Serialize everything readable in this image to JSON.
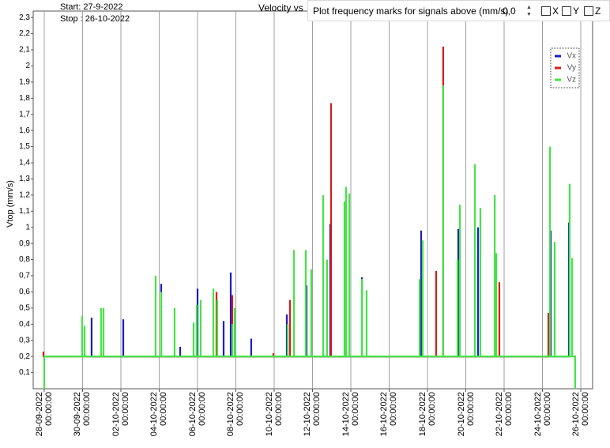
{
  "header": {
    "start": "Start: 27-9-2022",
    "stop": "Stop : 26-10-2022"
  },
  "toolbar": {
    "prompt": "Plot frequency marks for signals above (mm/s)",
    "threshold": "0,0",
    "checkboxes": [
      "X",
      "Y",
      "Z"
    ]
  },
  "chart_data": {
    "type": "line",
    "title": "Velocity vs",
    "ylabel": "Vtop (mm/s)",
    "xlim": [
      "2022-09-27 10:10:00",
      "2022-10-26 14:50:00"
    ],
    "ylim": [
      0,
      2.34
    ],
    "xticks": [
      {
        "value": "2022-09-28 00:00:00",
        "label": "28-09-2022 00:00:00"
      },
      {
        "value": "2022-09-30 00:00:00",
        "label": "30-09-2022 00:00:00"
      },
      {
        "value": "2022-10-02 00:00:00",
        "label": "02-10-2022 00:00:00"
      },
      {
        "value": "2022-10-04 00:00:00",
        "label": "04-10-2022 00:00:00"
      },
      {
        "value": "2022-10-06 00:00:00",
        "label": "06-10-2022 00:00:00"
      },
      {
        "value": "2022-10-08 00:00:00",
        "label": "08-10-2022 00:00:00"
      },
      {
        "value": "2022-10-10 00:00:00",
        "label": "10-10-2022 00:00:00"
      },
      {
        "value": "2022-10-12 00:00:00",
        "label": "12-10-2022 00:00:00"
      },
      {
        "value": "2022-10-14 00:00:00",
        "label": "14-10-2022 00:00:00"
      },
      {
        "value": "2022-10-16 00:00:00",
        "label": "16-10-2022 00:00:00"
      },
      {
        "value": "2022-10-18 00:00:00",
        "label": "18-10-2022 00:00:00"
      },
      {
        "value": "2022-10-20 00:00:00",
        "label": "20-10-2022 00:00:00"
      },
      {
        "value": "2022-10-22 00:00:00",
        "label": "22-10-2022 00:00:00"
      },
      {
        "value": "2022-10-24 00:00:00",
        "label": "24-10-2022 00:00:00"
      },
      {
        "value": "2022-10-26 00:00:00",
        "label": "26-10-2022 00:00:00"
      }
    ],
    "yticks": [
      {
        "value": 0.1,
        "label": "0,1"
      },
      {
        "value": 0.2,
        "label": "0,2"
      },
      {
        "value": 0.3,
        "label": "0,3"
      },
      {
        "value": 0.4,
        "label": "0,4"
      },
      {
        "value": 0.5,
        "label": "0,5"
      },
      {
        "value": 0.6,
        "label": "0,6"
      },
      {
        "value": 0.7,
        "label": "0,7"
      },
      {
        "value": 0.8,
        "label": "0,8"
      },
      {
        "value": 0.9,
        "label": "0,9"
      },
      1,
      {
        "value": 1.1,
        "label": "1,1"
      },
      {
        "value": 1.2,
        "label": "1,2"
      },
      {
        "value": 1.3,
        "label": "1,3"
      },
      {
        "value": 1.4,
        "label": "1,4"
      },
      {
        "value": 1.5,
        "label": "1,5"
      },
      {
        "value": 1.6,
        "label": "1,6"
      },
      {
        "value": 1.7,
        "label": "1,7"
      },
      {
        "value": 1.8,
        "label": "1,8"
      },
      {
        "value": 1.9,
        "label": "1,9"
      },
      2,
      {
        "value": 2.1,
        "label": "2,1"
      },
      {
        "value": 2.2,
        "label": "2,2"
      },
      {
        "value": 2.3,
        "label": "2,3"
      }
    ],
    "grid": "x",
    "legend": "upper right",
    "series": [
      {
        "name": "Vx",
        "color": "#1c1cc8",
        "x": [
          "2022-09-30 11:20",
          "2022-09-30 11:20",
          "2022-09-30 11:20",
          "2022-10-02 03:00",
          "2022-10-02 03:00",
          "2022-10-02 03:00",
          "2022-10-04 02:30",
          "2022-10-04 02:30",
          "2022-10-04 02:30",
          "2022-10-05 02:15",
          "2022-10-05 02:15",
          "2022-10-05 02:15",
          "2022-10-06 00:00",
          "2022-10-06 00:00",
          "2022-10-06 00:00",
          "2022-10-07 08:40",
          "2022-10-07 08:40",
          "2022-10-07 08:40",
          "2022-10-07 17:35",
          "2022-10-07 17:35",
          "2022-10-07 17:35",
          "2022-10-08 19:15",
          "2022-10-08 19:15",
          "2022-10-08 19:15",
          "2022-10-10 15:50",
          "2022-10-10 15:50",
          "2022-10-10 15:50",
          "2022-10-11 16:35",
          "2022-10-11 16:35",
          "2022-10-11 16:35",
          "2022-10-12 22:15",
          "2022-10-12 22:15",
          "2022-10-12 22:15",
          "2022-10-14 13:55",
          "2022-10-14 13:55",
          "2022-10-14 13:55",
          "2022-10-17 16:05",
          "2022-10-17 16:05",
          "2022-10-17 16:05",
          "2022-10-19 14:35",
          "2022-10-19 14:35",
          "2022-10-19 14:35",
          "2022-10-20 15:20",
          "2022-10-20 15:20",
          "2022-10-20 15:20",
          "2022-10-24 10:20",
          "2022-10-24 10:20",
          "2022-10-24 10:20",
          "2022-10-25 09:10",
          "2022-10-25 09:10",
          "2022-10-25 09:10"
        ],
        "values": [
          0.2,
          0.44,
          0.2,
          0.2,
          0.43,
          0.2,
          0.2,
          0.65,
          0.2,
          0.2,
          0.26,
          0.2,
          0.2,
          0.62,
          0.2,
          0.2,
          0.42,
          0.2,
          0.2,
          0.72,
          0.2,
          0.2,
          0.31,
          0.2,
          0.2,
          0.46,
          0.2,
          0.2,
          0.64,
          0.2,
          0.2,
          1.02,
          0.2,
          0.2,
          0.69,
          0.2,
          0.2,
          0.98,
          0.2,
          0.2,
          0.99,
          0.2,
          0.2,
          1.0,
          0.2,
          0.2,
          0.98,
          0.2,
          0.2,
          1.03,
          0.2
        ]
      },
      {
        "name": "Vy",
        "color": "#e01818",
        "x": [
          "2022-09-27 23:00",
          "2022-09-27 23:00",
          "2022-09-27 23:00",
          "2022-10-06 23:45",
          "2022-10-06 23:45",
          "2022-10-06 23:45",
          "2022-10-07 19:30",
          "2022-10-07 19:30",
          "2022-10-07 19:30",
          "2022-10-09 23:00",
          "2022-10-09 23:00",
          "2022-10-09 23:00",
          "2022-10-10 19:45",
          "2022-10-10 19:45",
          "2022-10-10 19:45",
          "2022-10-12 23:15",
          "2022-10-12 23:15",
          "2022-10-12 23:15",
          "2022-10-18 10:50",
          "2022-10-18 10:50",
          "2022-10-18 10:50",
          "2022-10-18 19:40",
          "2022-10-18 19:40",
          "2022-10-18 19:40",
          "2022-10-21 18:00",
          "2022-10-21 18:00",
          "2022-10-21 18:00",
          "2022-10-24 07:25",
          "2022-10-24 07:25",
          "2022-10-24 07:25"
        ],
        "values": [
          0.2,
          0.23,
          0.2,
          0.2,
          0.6,
          0.2,
          0.2,
          0.58,
          0.2,
          0.2,
          0.22,
          0.2,
          0.2,
          0.55,
          0.2,
          0.2,
          1.77,
          0.2,
          0.2,
          0.73,
          0.2,
          0.2,
          2.12,
          0.2,
          0.2,
          0.66,
          0.2,
          0.2,
          0.47,
          0.2
        ]
      },
      {
        "name": "Vz",
        "color": "#44e444",
        "x": [
          "2022-09-28 00:00",
          "2022-09-28 00:00",
          "2022-09-29 23:30",
          "2022-09-29 23:30",
          "2022-09-29 23:30",
          "2022-09-30 02:30",
          "2022-09-30 02:30",
          "2022-09-30 02:30",
          "2022-09-30 23:15",
          "2022-09-30 23:15",
          "2022-09-30 23:15",
          "2022-10-01 02:15",
          "2022-10-01 02:15",
          "2022-10-01 02:15",
          "2022-10-03 19:30",
          "2022-10-03 19:30",
          "2022-10-03 19:30",
          "2022-10-04 02:30",
          "2022-10-04 02:30",
          "2022-10-04 02:30",
          "2022-10-04 19:15",
          "2022-10-04 19:15",
          "2022-10-04 19:15",
          "2022-10-05 19:05",
          "2022-10-05 19:05",
          "2022-10-05 19:05",
          "2022-10-05 23:00",
          "2022-10-05 23:00",
          "2022-10-05 23:00",
          "2022-10-06 03:55",
          "2022-10-06 03:55",
          "2022-10-06 03:55",
          "2022-10-06 19:50",
          "2022-10-06 19:50",
          "2022-10-06 19:50",
          "2022-10-07 00:45",
          "2022-10-07 00:45",
          "2022-10-07 00:45",
          "2022-10-07 19:30",
          "2022-10-07 19:30",
          "2022-10-07 19:30",
          "2022-10-07 22:30",
          "2022-10-07 22:30",
          "2022-10-07 22:30",
          "2022-10-10 16:50",
          "2022-10-10 16:50",
          "2022-10-10 16:50",
          "2022-10-11 00:45",
          "2022-10-11 00:45",
          "2022-10-11 00:45",
          "2022-10-11 15:35",
          "2022-10-11 15:35",
          "2022-10-11 15:35",
          "2022-10-11 22:30",
          "2022-10-11 22:30",
          "2022-10-11 22:30",
          "2022-10-12 13:25",
          "2022-10-12 13:25",
          "2022-10-12 13:25",
          "2022-10-12 18:15",
          "2022-10-12 18:15",
          "2022-10-12 18:15",
          "2022-10-13 16:05",
          "2022-10-13 16:05",
          "2022-10-13 16:05",
          "2022-10-13 18:00",
          "2022-10-13 18:00",
          "2022-10-13 18:00",
          "2022-10-13 22:05",
          "2022-10-13 22:05",
          "2022-10-13 22:05",
          "2022-10-14 13:55",
          "2022-10-14 13:55",
          "2022-10-14 13:55",
          "2022-10-14 19:45",
          "2022-10-14 19:45",
          "2022-10-14 19:45",
          "2022-10-17 14:10",
          "2022-10-17 14:10",
          "2022-10-17 14:10",
          "2022-10-17 18:00",
          "2022-10-17 18:00",
          "2022-10-17 18:00",
          "2022-10-18 19:40",
          "2022-10-18 19:40",
          "2022-10-18 19:40",
          "2022-10-19 13:40",
          "2022-10-19 13:40",
          "2022-10-19 13:40",
          "2022-10-19 16:35",
          "2022-10-19 16:35",
          "2022-10-19 16:35",
          "2022-10-20 11:20",
          "2022-10-20 11:20",
          "2022-10-20 11:20",
          "2022-10-20 18:15",
          "2022-10-20 18:15",
          "2022-10-20 18:15",
          "2022-10-21 12:15",
          "2022-10-21 12:15",
          "2022-10-21 12:15",
          "2022-10-21 14:10",
          "2022-10-21 14:10",
          "2022-10-21 14:10",
          "2022-10-24 09:20",
          "2022-10-24 09:20",
          "2022-10-24 09:20",
          "2022-10-24 15:20",
          "2022-10-24 15:20",
          "2022-10-24 15:20",
          "2022-10-25 10:05",
          "2022-10-25 10:05",
          "2022-10-25 10:05",
          "2022-10-25 13:10",
          "2022-10-25 13:10",
          "2022-10-25 13:10",
          "2022-10-25 17:00",
          "2022-10-25 17:00"
        ],
        "values": [
          0,
          0.2,
          0.2,
          0.45,
          0.2,
          0.2,
          0.39,
          0.2,
          0.2,
          0.5,
          0.2,
          0.2,
          0.5,
          0.2,
          0.2,
          0.7,
          0.2,
          0.2,
          0.6,
          0.2,
          0.2,
          0.5,
          0.2,
          0.2,
          0.41,
          0.2,
          0.2,
          0.52,
          0.2,
          0.2,
          0.55,
          0.2,
          0.2,
          0.62,
          0.2,
          0.2,
          0.55,
          0.2,
          0.2,
          0.4,
          0.2,
          0.2,
          0.5,
          0.2,
          0.2,
          0.4,
          0.2,
          0.2,
          0.86,
          0.2,
          0.2,
          0.86,
          0.2,
          0.2,
          0.74,
          0.2,
          0.2,
          1.2,
          0.2,
          0.2,
          0.8,
          0.2,
          0.2,
          1.16,
          0.2,
          0.2,
          1.25,
          0.2,
          0.2,
          1.21,
          0.2,
          0.2,
          0.68,
          0.2,
          0.2,
          0.61,
          0.2,
          0.2,
          0.68,
          0.2,
          0.2,
          0.92,
          0.2,
          0.2,
          1.88,
          0.2,
          0.2,
          0.8,
          0.2,
          0.2,
          1.14,
          0.2,
          0.2,
          1.39,
          0.2,
          0.2,
          1.12,
          0.2,
          0.2,
          1.2,
          0.2,
          0.2,
          0.84,
          0.2,
          0.2,
          1.5,
          0.2,
          0.2,
          0.91,
          0.2,
          0.2,
          1.27,
          0.2,
          0.2,
          0.81,
          0.2,
          0.2,
          0
        ]
      }
    ]
  }
}
